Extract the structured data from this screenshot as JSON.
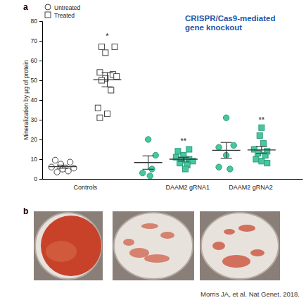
{
  "chart_data": {
    "type": "scatter",
    "title": [
      "CRISPR/Cas9-mediated",
      "gene knockout"
    ],
    "y_label": "Mineralization by µg of protein",
    "panel_labels": [
      "a",
      "b"
    ],
    "source": "Morris JA, et al. Nat Genet. 2018.",
    "legend": "upper left",
    "xlim": [
      0,
      7
    ],
    "xticks": [
      {
        "value": 1.15,
        "label": "Controls"
      },
      {
        "value": 3.9,
        "label": "DAAM2 gRNA1"
      },
      {
        "value": 5.6,
        "label": "DAAM2 gRNA2"
      }
    ],
    "ylim": [
      0,
      80
    ],
    "yticks": [
      0,
      10,
      20,
      30,
      40,
      50,
      60,
      70,
      80
    ],
    "grid": false,
    "series": [
      {
        "name": "Untreated",
        "marker": "circle",
        "x": [
          0.35,
          0.75,
          0.5,
          0.25,
          0.85,
          0.55,
          0.7,
          0.4,
          2.85,
          3.05,
          2.95,
          2.7,
          2.9,
          4.95,
          5.15,
          4.75,
          4.95,
          4.75,
          5.05
        ],
        "values": [
          9.5,
          8.5,
          7.5,
          6,
          5.5,
          5,
          4,
          3.5,
          20,
          12,
          5,
          3,
          1.5,
          31,
          17,
          16,
          12,
          6,
          5
        ],
        "colors": [
          "#ffffff",
          "#ffffff",
          "#ffffff",
          "#ffffff",
          "#ffffff",
          "#ffffff",
          "#ffffff",
          "#ffffff",
          "#45c8a0",
          "#45c8a0",
          "#45c8a0",
          "#45c8a0",
          "#45c8a0",
          "#45c8a0",
          "#45c8a0",
          "#45c8a0",
          "#45c8a0",
          "#45c8a0",
          "#45c8a0"
        ]
      },
      {
        "name": "Treated",
        "marker": "square",
        "x": [
          1.6,
          1.95,
          1.7,
          1.55,
          1.9,
          2.0,
          1.7,
          1.6,
          1.85,
          1.5,
          1.75,
          1.55,
          3.95,
          3.65,
          3.8,
          3.6,
          3.95,
          3.75,
          4.05,
          3.7,
          3.9,
          3.85,
          5.9,
          5.85,
          5.95,
          5.7,
          6.05,
          5.8,
          6.0,
          5.75,
          5.9,
          6.05
        ],
        "values": [
          67,
          67,
          64,
          54,
          53,
          52,
          51,
          50,
          45,
          36,
          33,
          31,
          15,
          14,
          12,
          11,
          10,
          9.5,
          9,
          8,
          7,
          5,
          26,
          22,
          18,
          15,
          14,
          13,
          12,
          10,
          9,
          8
        ],
        "colors": [
          "#ffffff",
          "#ffffff",
          "#ffffff",
          "#ffffff",
          "#ffffff",
          "#ffffff",
          "#ffffff",
          "#ffffff",
          "#ffffff",
          "#ffffff",
          "#ffffff",
          "#ffffff",
          "#45c8a0",
          "#45c8a0",
          "#45c8a0",
          "#45c8a0",
          "#45c8a0",
          "#45c8a0",
          "#45c8a0",
          "#45c8a0",
          "#45c8a0",
          "#45c8a0",
          "#45c8a0",
          "#45c8a0",
          "#45c8a0",
          "#45c8a0",
          "#45c8a0",
          "#45c8a0",
          "#45c8a0",
          "#45c8a0",
          "#45c8a0",
          "#45c8a0"
        ]
      }
    ],
    "groups": [
      {
        "x": 0.55,
        "mean": 6.2,
        "sem": 0.8
      },
      {
        "x": 1.75,
        "mean": 50.3,
        "sem": 3.6
      },
      {
        "x": 2.85,
        "mean": 8.3,
        "sem": 3.4
      },
      {
        "x": 3.8,
        "mean": 10,
        "sem": 1
      },
      {
        "x": 4.95,
        "mean": 14.5,
        "sem": 4
      },
      {
        "x": 5.9,
        "mean": 14.7,
        "sem": 1.8
      }
    ],
    "annotations": [
      {
        "x": 1.75,
        "y": 71,
        "text": "*"
      },
      {
        "x": 3.8,
        "y": 18,
        "text": "**"
      },
      {
        "x": 5.9,
        "y": 28.5,
        "text": "**"
      }
    ]
  }
}
